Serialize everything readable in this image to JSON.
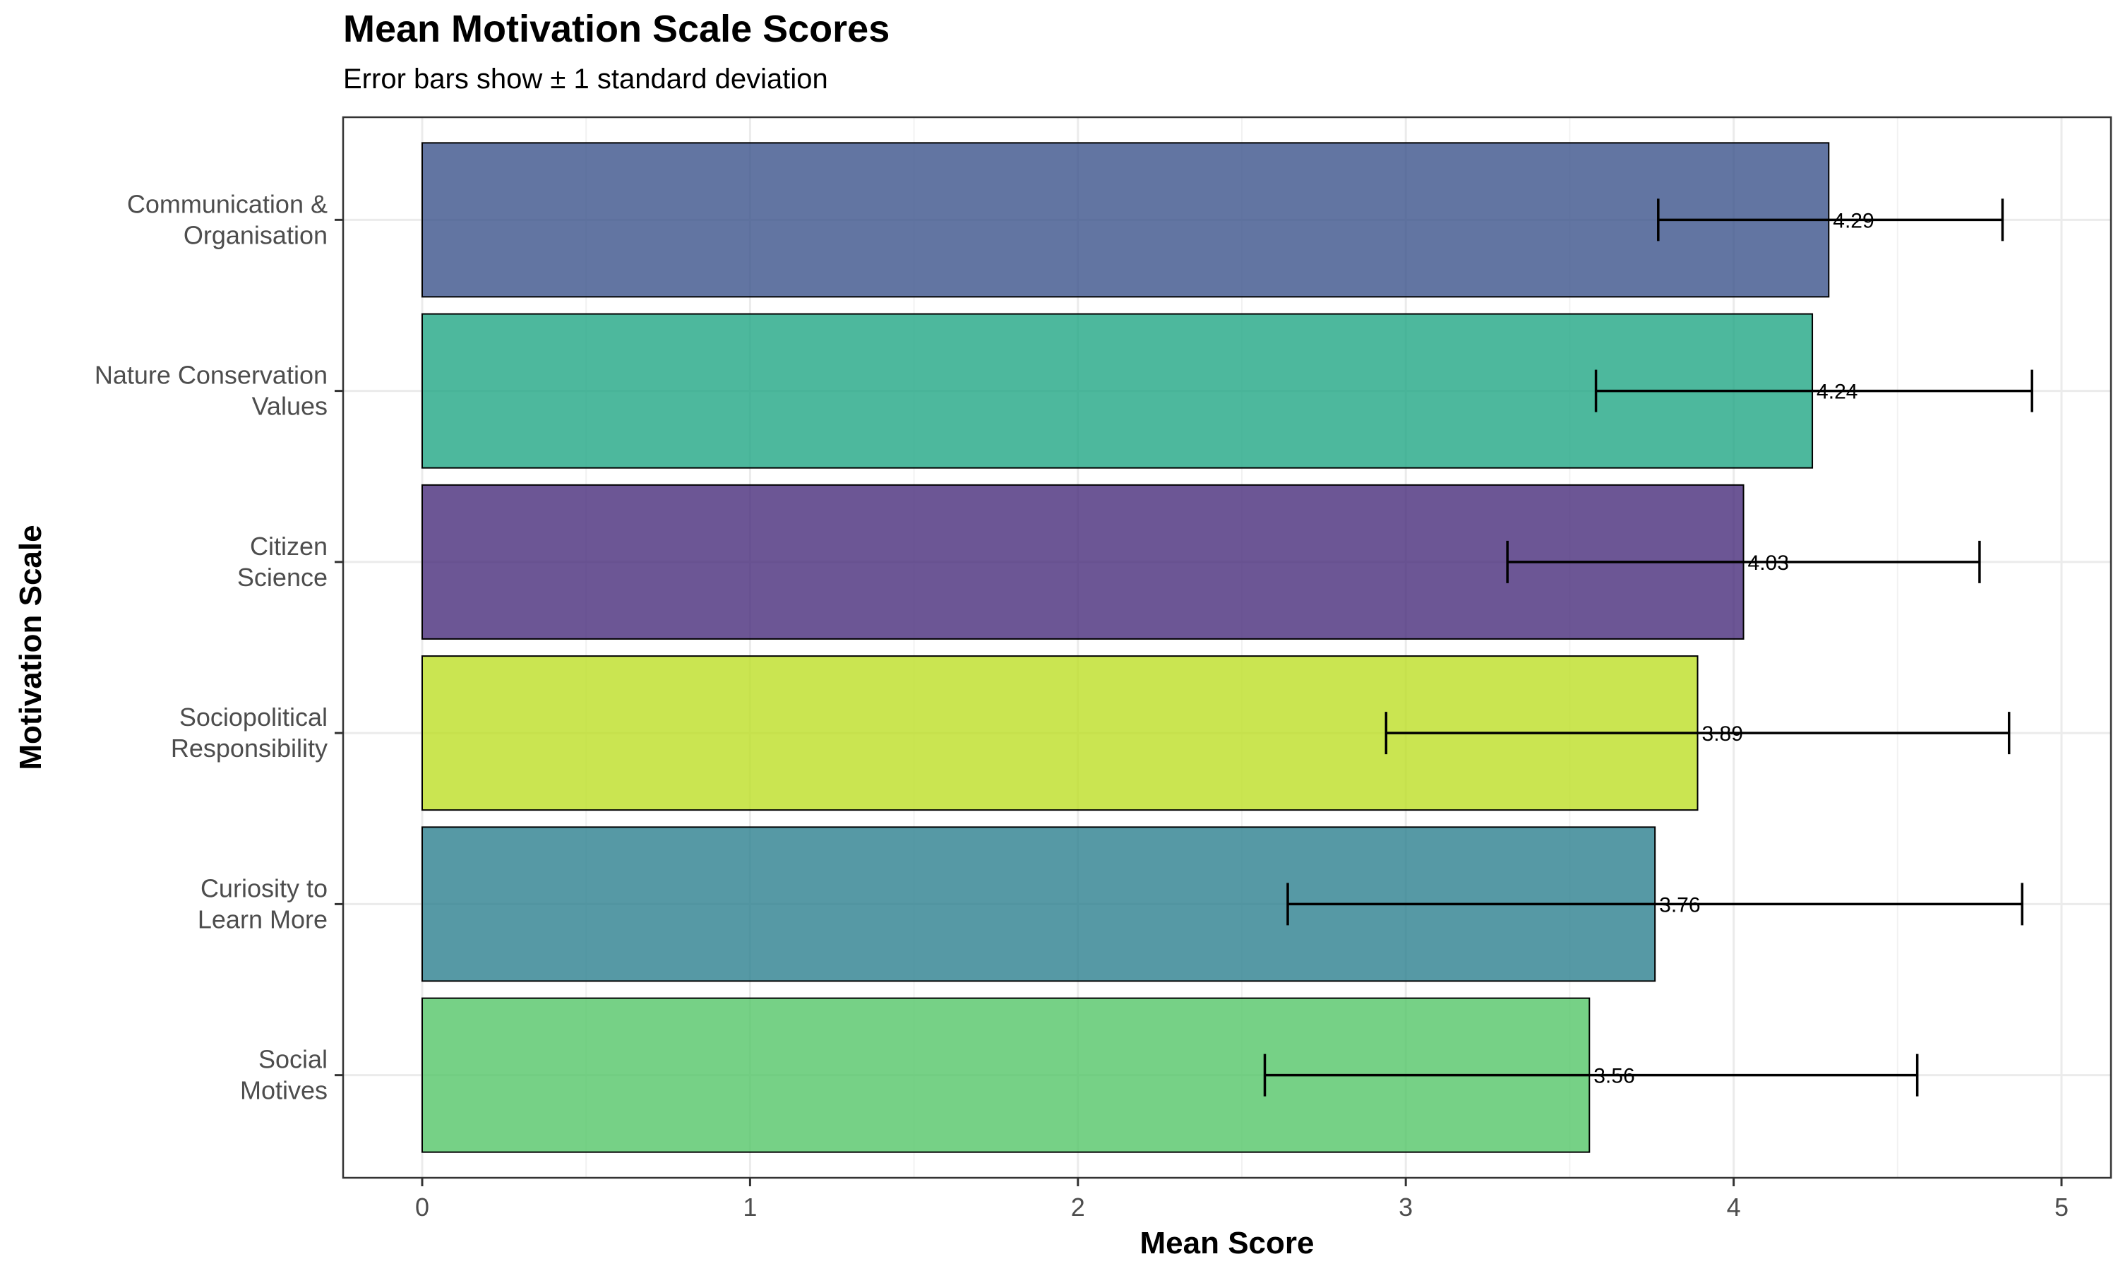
{
  "chart_data": {
    "type": "bar",
    "orientation": "horizontal",
    "title": "Mean Motivation Scale Scores",
    "subtitle": "Error bars show ± 1 standard deviation",
    "xlabel": "Mean Score",
    "ylabel": "Motivation Scale",
    "xlim": [
      -0.24,
      5.15
    ],
    "xticks": [
      0,
      1,
      2,
      3,
      4,
      5
    ],
    "grid": true,
    "legend": "none",
    "bars": [
      {
        "label": [
          "Communication &",
          "Organisation"
        ],
        "value": 4.29,
        "value_label": "4.29",
        "err_low": 3.77,
        "err_high": 4.82,
        "color": "#3b528b"
      },
      {
        "label": [
          "Nature Conservation",
          "Values"
        ],
        "value": 4.24,
        "value_label": "4.24",
        "err_low": 3.58,
        "err_high": 4.91,
        "color": "#21a685"
      },
      {
        "label": [
          "Citizen",
          "Science"
        ],
        "value": 4.03,
        "value_label": "4.03",
        "err_low": 3.31,
        "err_high": 4.75,
        "color": "#472c7a"
      },
      {
        "label": [
          "Sociopolitical",
          "Responsibility"
        ],
        "value": 3.89,
        "value_label": "3.89",
        "err_low": 2.94,
        "err_high": 4.84,
        "color": "#bddf26"
      },
      {
        "label": [
          "Curiosity to",
          "Learn More"
        ],
        "value": 3.76,
        "value_label": "3.76",
        "err_low": 2.64,
        "err_high": 4.88,
        "color": "#2c7f8e"
      },
      {
        "label": [
          "Social",
          "Motives"
        ],
        "value": 3.56,
        "value_label": "3.56",
        "err_low": 2.57,
        "err_high": 4.56,
        "color": "#54c568"
      }
    ]
  }
}
